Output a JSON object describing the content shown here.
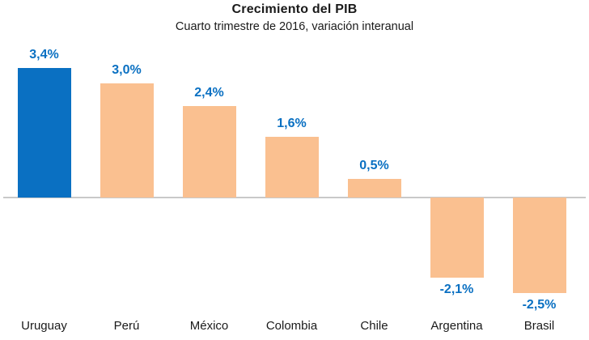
{
  "title": "Crecimiento del PIB",
  "subtitle": "Cuarto trimestre de 2016, variación interanual",
  "colors": {
    "highlight_bar": "#0A70C2",
    "default_bar": "#FAC090",
    "value_label": "#0A70C2",
    "axis_line": "#C9C9C9",
    "category_label": "#1A1A1A",
    "background": "#FFFFFF"
  },
  "chart_data": {
    "type": "bar",
    "title": "Crecimiento del PIB",
    "subtitle": "Cuarto trimestre de 2016, variación interanual",
    "xlabel": "",
    "ylabel": "",
    "categories": [
      "Uruguay",
      "Perú",
      "México",
      "Colombia",
      "Chile",
      "Argentina",
      "Brasil"
    ],
    "values": [
      3.4,
      3.0,
      2.4,
      1.6,
      0.5,
      -2.1,
      -2.5
    ],
    "value_labels": [
      "3,4%",
      "3,0%",
      "2,4%",
      "1,6%",
      "0,5%",
      "-2,1%",
      "-2,5%"
    ],
    "unit": "%",
    "decimal_separator": ",",
    "highlight_category": "Uruguay",
    "ylim": [
      -3.0,
      4.0
    ],
    "grid": "off",
    "legend": "none",
    "y_axis_labels": "hidden",
    "baseline_value": 0
  }
}
